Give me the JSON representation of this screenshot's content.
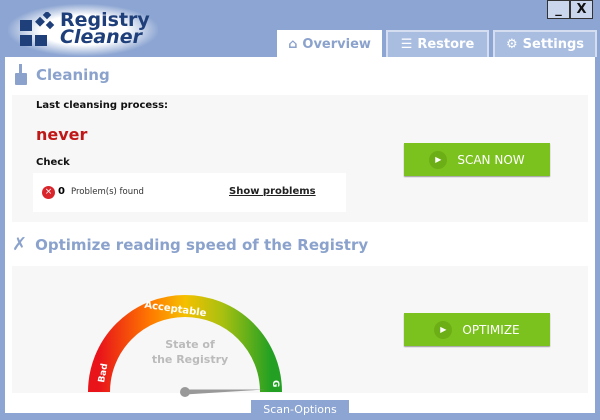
{
  "app": {
    "title_line1": "Registry",
    "title_line2": "Cleaner"
  },
  "window": {
    "minimize": "_",
    "close": "X"
  },
  "tabs": [
    {
      "label": "Overview",
      "icon": "home-icon",
      "active": true
    },
    {
      "label": "Restore",
      "icon": "database-icon"
    },
    {
      "label": "Settings",
      "icon": "gear-icon"
    }
  ],
  "cleaning": {
    "title": "Cleaning",
    "last_label": "Last cleansing process:",
    "last_value": "never",
    "check_label": "Check",
    "problem_count": "0",
    "problems_text": "Problem(s) found",
    "show_problems": "Show problems",
    "scan_button": "SCAN NOW"
  },
  "optimize": {
    "title": "Optimize reading speed of the Registry",
    "gauge_center_line1": "State of",
    "gauge_center_line2": "the Registry",
    "gauge_bad": "Bad",
    "gauge_acceptable": "Acceptable",
    "gauge_good": "G",
    "gauge_value_fraction": 0.99,
    "button": "OPTIMIZE"
  },
  "footer": {
    "scan_options": "Scan-Options"
  },
  "colors": {
    "accent": "#8ca5d2",
    "button": "#7cc21e",
    "never": "#c01818"
  }
}
